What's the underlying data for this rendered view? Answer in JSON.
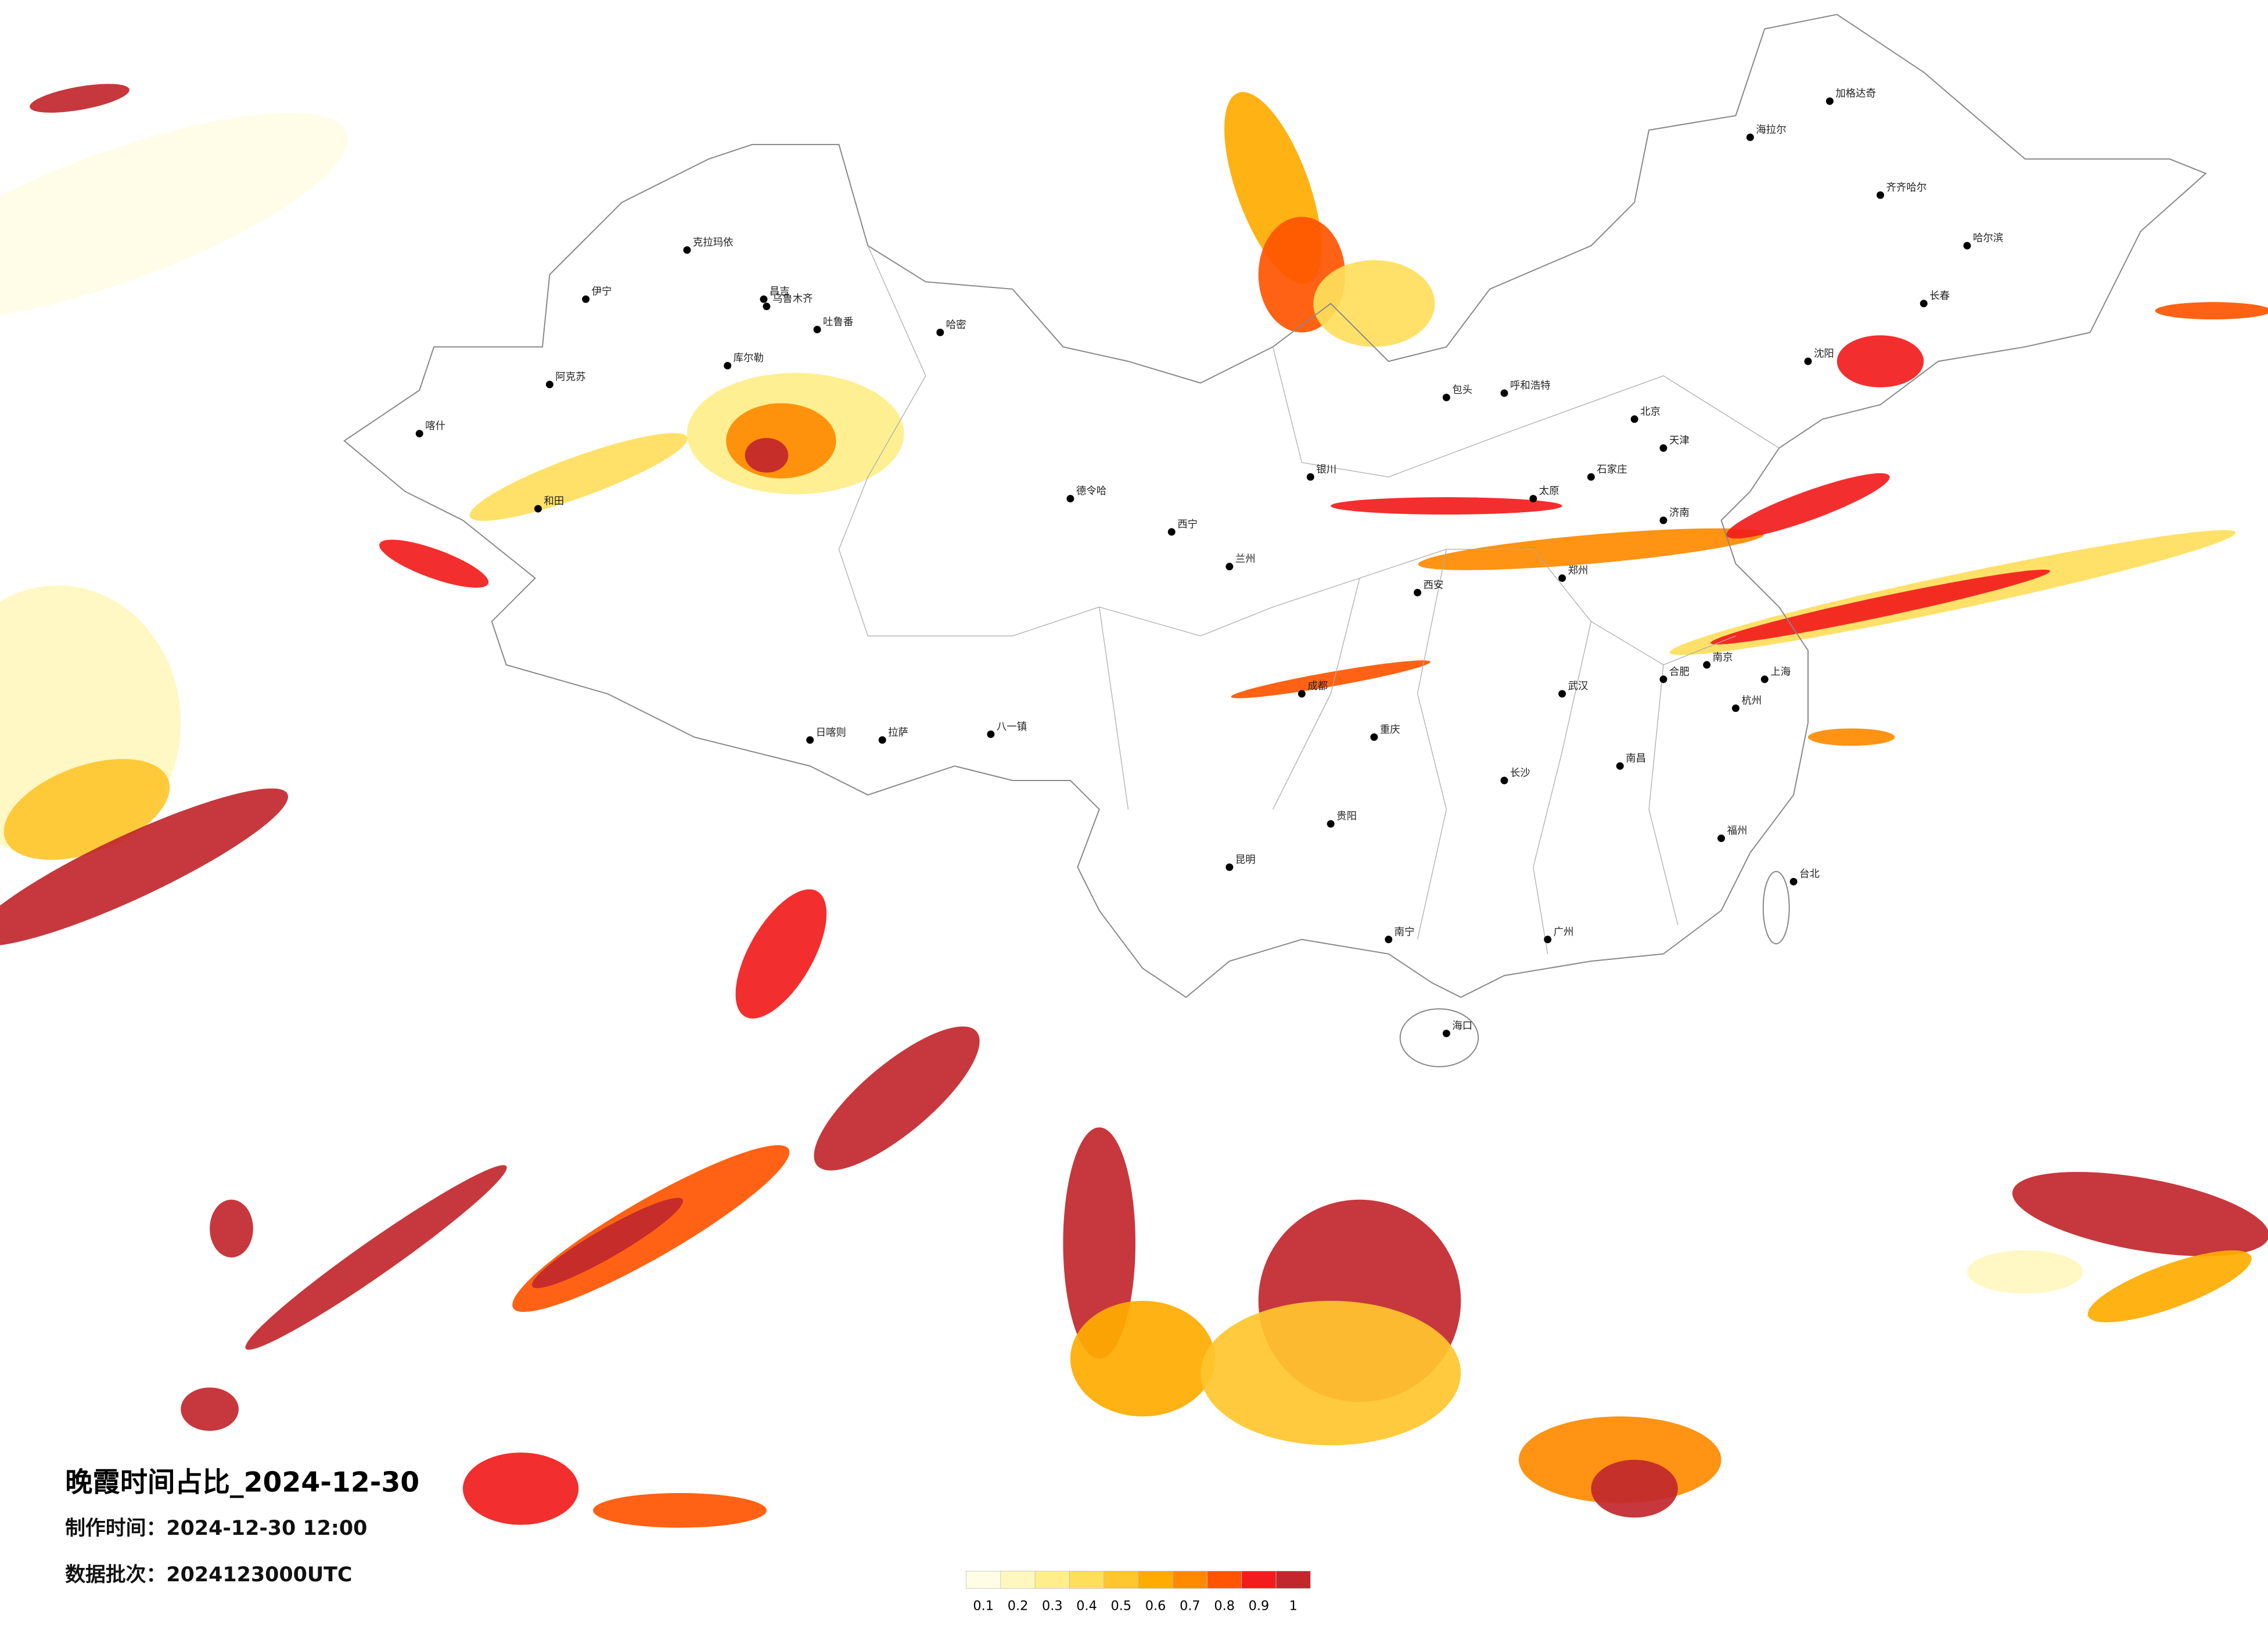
{
  "header": {
    "title": "晚霞时间占比_2024-12-30",
    "made_time": "制作时间：2024-12-30 12:00",
    "batch": "数据批次：2024123000UTC"
  },
  "colorbar": {
    "ticks": [
      0.1,
      0.2,
      0.3,
      0.4,
      0.5,
      0.6,
      0.7,
      0.8,
      0.9,
      1
    ],
    "colors": [
      "#fffde6",
      "#fff7bf",
      "#ffee8a",
      "#ffde5c",
      "#ffc62e",
      "#ffab00",
      "#ff8a00",
      "#ff5500",
      "#f21c1c",
      "#c1272d"
    ]
  },
  "cities": [
    "伊宁",
    "克拉玛依",
    "昌吉",
    "乌鲁木齐",
    "吐鲁番",
    "哈密",
    "库尔勒",
    "阿克苏",
    "喀什",
    "和田",
    "德令哈",
    "拉萨",
    "日喀则",
    "八一镇",
    "西宁",
    "兰州",
    "银川",
    "呼和浩特",
    "包头",
    "北京",
    "天津",
    "石家庄",
    "太原",
    "济南",
    "郑州",
    "西安",
    "成都",
    "重庆",
    "贵阳",
    "昆明",
    "南宁",
    "广州",
    "长沙",
    "武汉",
    "南昌",
    "杭州",
    "上海",
    "南京",
    "福州",
    "合肥",
    "沈阳",
    "长春",
    "哈尔滨",
    "齐齐哈尔",
    "海口",
    "台北",
    "海拉尔",
    "加格达奇"
  ]
}
